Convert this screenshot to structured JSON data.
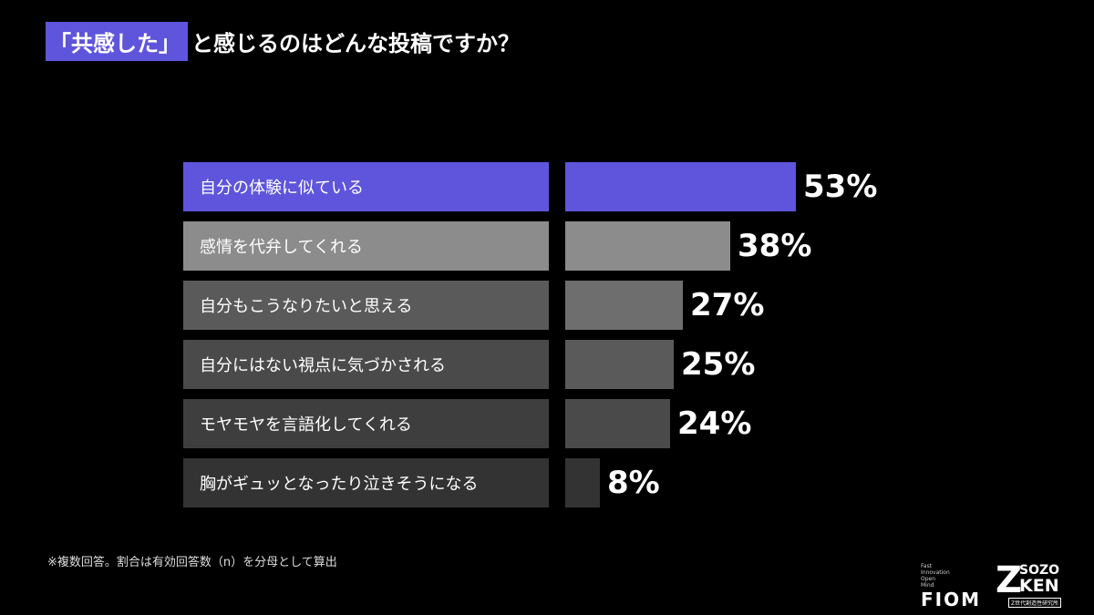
{
  "title": {
    "highlight": "「共感した」",
    "rest": "と感じるのはどんな投稿ですか？"
  },
  "chart_data": {
    "type": "bar",
    "orientation": "horizontal",
    "categories": [
      "自分の体験に似ている",
      "感情を代弁してくれる",
      "自分もこうなりたいと思える",
      "自分にはない視点に気づかされる",
      "モヤモヤを言語化してくれる",
      "胸がギュッとなったり泣きそうになる"
    ],
    "values": [
      53,
      38,
      27,
      25,
      24,
      8
    ],
    "value_labels": [
      "53%",
      "38%",
      "27%",
      "25%",
      "24%",
      "8%"
    ],
    "unit": "%",
    "colors": [
      "#5f55dc",
      "#8c8c8c",
      "#6e6e6e",
      "#5a5a5a",
      "#4a4a4a",
      "#333333"
    ],
    "label_box_colors": [
      "#5f55dc",
      "#8c8c8c",
      "#5a5a5a",
      "#4a4a4a",
      "#3e3e3e",
      "#333333"
    ],
    "xlim": [
      0,
      53
    ]
  },
  "footnote": "※複数回答。割合は有効回答数（n）を分母として算出",
  "logos": {
    "fiom_small": [
      "Fast",
      "Innovation",
      "Open",
      "Mind"
    ],
    "fiom": "FIOM",
    "sozo_z": "Z",
    "sozo_top": "SOZO",
    "sozo_bottom": "KEN",
    "sozo_sub": "Z世代創造性研究所"
  }
}
